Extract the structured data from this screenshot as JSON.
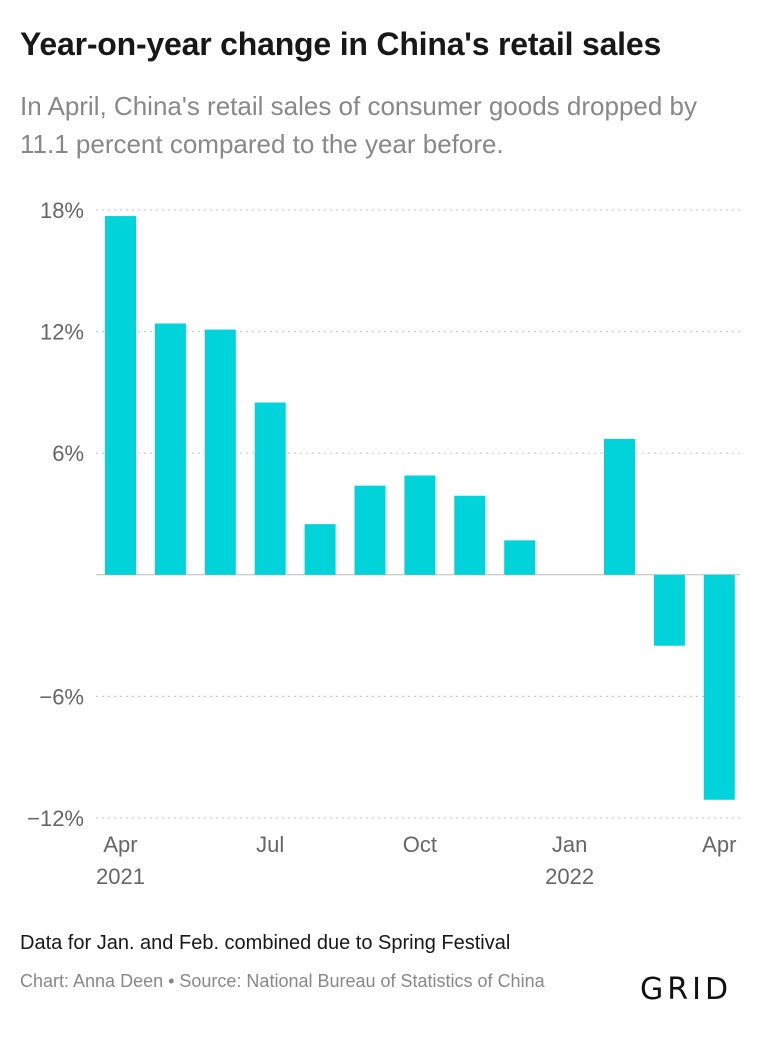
{
  "header": {
    "title": "Year-on-year change in China's retail sales",
    "subtitle": "In April, China's retail sales of consumer goods dropped by 11.1 percent compared to the year before."
  },
  "chart_data": {
    "type": "bar",
    "title": "Year-on-year change in China's retail sales",
    "xlabel": "",
    "ylabel": "",
    "categories": [
      "Apr 2021",
      "May 2021",
      "Jun 2021",
      "Jul 2021",
      "Aug 2021",
      "Sep 2021",
      "Oct 2021",
      "Nov 2021",
      "Dec 2021",
      "Jan 2022",
      "Feb 2022",
      "Mar 2022",
      "Apr 2022"
    ],
    "values": [
      17.7,
      12.4,
      12.1,
      8.5,
      2.5,
      4.4,
      4.9,
      3.9,
      1.7,
      null,
      6.7,
      -3.5,
      -11.1
    ],
    "ylim": [
      -12,
      18
    ],
    "yticks": [
      18,
      12,
      6,
      0,
      -6,
      -12
    ],
    "ytick_labels": [
      "18%",
      "12%",
      "6%",
      "",
      "−6%",
      "−12%"
    ],
    "xtick_labels": [
      {
        "index": 0,
        "line1": "Apr",
        "line2": "2021"
      },
      {
        "index": 3,
        "line1": "Jul",
        "line2": ""
      },
      {
        "index": 6,
        "line1": "Oct",
        "line2": ""
      },
      {
        "index": 9,
        "line1": "Jan",
        "line2": "2022"
      },
      {
        "index": 12,
        "line1": "Apr",
        "line2": ""
      }
    ],
    "grid": true,
    "bar_color": "#00d4da",
    "grid_color": "#cccccc",
    "axis_label_color": "#666666"
  },
  "footer": {
    "note": "Data for Jan. and Feb. combined due to Spring Festival",
    "source": "Chart: Anna Deen • Source: National Bureau of Statistics of China",
    "logo": "GRID"
  }
}
